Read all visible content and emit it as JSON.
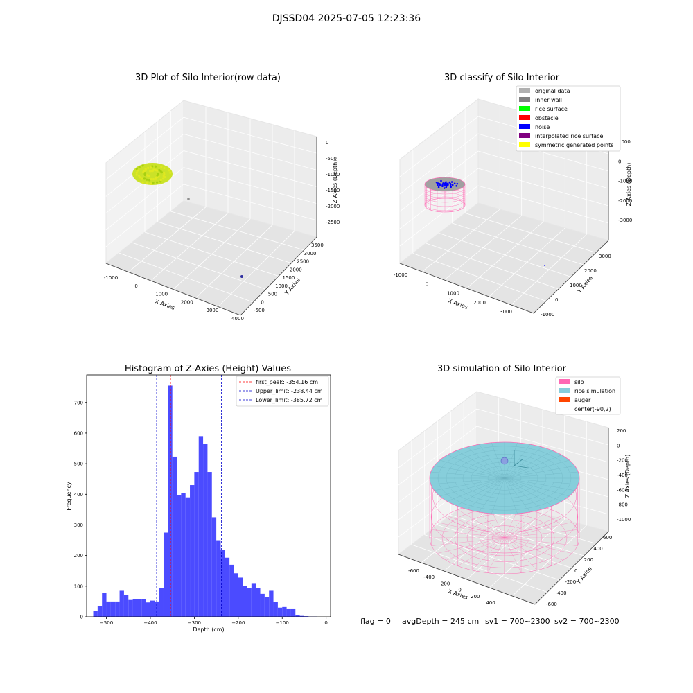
{
  "figure": {
    "suptitle": "DJSSD04 2025-07-05 12:23:36",
    "footer": {
      "flag": "flag = 0",
      "avg_depth": "avgDepth = 245 cm",
      "sv1": "sv1 = 700~2300",
      "sv2": "sv2 = 700~2300"
    }
  },
  "colors": {
    "yellow_green": "#c8e01c",
    "gray": "#909090",
    "blue": "#0000ff",
    "pink": "#ff69b4",
    "skyblue": "#87cedb",
    "red": "#ff0000",
    "navy": "#0000cc",
    "bar": "#4b4bff"
  },
  "chart_data": [
    {
      "type": "scatter3d",
      "title": "3D Plot of Silo Interior(row data)",
      "xlabel": "X Axies",
      "ylabel": "Y Axies",
      "zlabel": "Z Axies (Depth)",
      "x_ticks": [
        "-1000",
        "0",
        "1000",
        "2000",
        "3000",
        "4000"
      ],
      "y_ticks": [
        "-500",
        "0",
        "500",
        "1000",
        "1500",
        "2000",
        "2500",
        "3000",
        "3500"
      ],
      "z_ticks": [
        "0",
        "-500",
        "-1000",
        "-1500",
        "-2000",
        "-2500"
      ],
      "grid": true
    },
    {
      "type": "scatter3d",
      "title": "3D classify of Silo Interior",
      "xlabel": "X Axies",
      "ylabel": "Y Axies",
      "zlabel": "Z Axies (Depth)",
      "x_ticks": [
        "-1000",
        "0",
        "1000",
        "2000",
        "3000"
      ],
      "y_ticks": [
        "-1000",
        "0",
        "1000",
        "2000",
        "3000"
      ],
      "z_ticks": [
        "1000",
        "0",
        "-1000",
        "-2000",
        "-3000"
      ],
      "legend": [
        {
          "label": "original data",
          "color": "#b0b0b0"
        },
        {
          "label": "inner wall",
          "color": "#808080"
        },
        {
          "label": "rice surface",
          "color": "#00ff00"
        },
        {
          "label": "obstacle",
          "color": "#ff0000"
        },
        {
          "label": "noise",
          "color": "#0000ff"
        },
        {
          "label": "interpolated rice surface",
          "color": "#800080"
        },
        {
          "label": "symmetric generated points",
          "color": "#ffff00"
        }
      ],
      "legend_position": "top-right",
      "grid": true
    },
    {
      "type": "bar",
      "title": "Histogram of Z-Axies (Height) Values",
      "xlabel": "Depth (cm)",
      "ylabel": "Frequency",
      "xlim": [
        -545,
        10
      ],
      "ylim": [
        0,
        790
      ],
      "x_ticks": [
        -500,
        -400,
        -300,
        -200,
        -100,
        0
      ],
      "y_ticks": [
        0,
        100,
        200,
        300,
        400,
        500,
        600,
        700
      ],
      "bin_width": 10,
      "bins": [
        {
          "x": -530,
          "v": 20
        },
        {
          "x": -520,
          "v": 35
        },
        {
          "x": -510,
          "v": 77
        },
        {
          "x": -500,
          "v": 50
        },
        {
          "x": -490,
          "v": 50
        },
        {
          "x": -480,
          "v": 50
        },
        {
          "x": -470,
          "v": 85
        },
        {
          "x": -460,
          "v": 72
        },
        {
          "x": -450,
          "v": 55
        },
        {
          "x": -440,
          "v": 57
        },
        {
          "x": -430,
          "v": 58
        },
        {
          "x": -420,
          "v": 57
        },
        {
          "x": -410,
          "v": 47
        },
        {
          "x": -400,
          "v": 53
        },
        {
          "x": -390,
          "v": 50
        },
        {
          "x": -380,
          "v": 95
        },
        {
          "x": -370,
          "v": 275
        },
        {
          "x": -360,
          "v": 755
        },
        {
          "x": -350,
          "v": 523
        },
        {
          "x": -340,
          "v": 398
        },
        {
          "x": -330,
          "v": 403
        },
        {
          "x": -320,
          "v": 390
        },
        {
          "x": -310,
          "v": 430
        },
        {
          "x": -300,
          "v": 473
        },
        {
          "x": -290,
          "v": 590
        },
        {
          "x": -280,
          "v": 565
        },
        {
          "x": -270,
          "v": 473
        },
        {
          "x": -260,
          "v": 325
        },
        {
          "x": -250,
          "v": 250
        },
        {
          "x": -240,
          "v": 218
        },
        {
          "x": -230,
          "v": 193
        },
        {
          "x": -220,
          "v": 170
        },
        {
          "x": -210,
          "v": 142
        },
        {
          "x": -200,
          "v": 128
        },
        {
          "x": -190,
          "v": 100
        },
        {
          "x": -180,
          "v": 95
        },
        {
          "x": -170,
          "v": 110
        },
        {
          "x": -160,
          "v": 95
        },
        {
          "x": -150,
          "v": 75
        },
        {
          "x": -140,
          "v": 65
        },
        {
          "x": -130,
          "v": 85
        },
        {
          "x": -120,
          "v": 48
        },
        {
          "x": -110,
          "v": 30
        },
        {
          "x": -100,
          "v": 32
        },
        {
          "x": -90,
          "v": 25
        },
        {
          "x": -80,
          "v": 25
        },
        {
          "x": -70,
          "v": 5
        },
        {
          "x": -60,
          "v": 3
        },
        {
          "x": -50,
          "v": 2
        },
        {
          "x": -40,
          "v": 1
        },
        {
          "x": -30,
          "v": 1
        }
      ],
      "vlines": [
        {
          "label": "first_peak: -354.16 cm",
          "x": -354.16,
          "color": "#ff0000"
        },
        {
          "label": "Upper_limit: -238.44 cm",
          "x": -238.44,
          "color": "#0000cc"
        },
        {
          "label": "Lower_limit: -385.72 cm",
          "x": -385.72,
          "color": "#0000cc"
        }
      ],
      "legend_position": "top-right"
    },
    {
      "type": "surface3d",
      "title": "3D simulation of Silo Interior",
      "xlabel": "X Axies",
      "ylabel": "Y Axies",
      "zlabel": "Z Axies (Depth)",
      "x_ticks": [
        "-600",
        "-400",
        "-200",
        "0",
        "200",
        "400"
      ],
      "y_ticks": [
        "-600",
        "-400",
        "-200",
        "0",
        "200",
        "400",
        "600"
      ],
      "z_ticks": [
        "200",
        "0",
        "-200",
        "-400",
        "-600",
        "-800",
        "-1000"
      ],
      "legend": [
        {
          "label": "silo",
          "color": "#ff69b4"
        },
        {
          "label": "rice simulation",
          "color": "#87cedb"
        },
        {
          "label": "auger",
          "color": "#ff4500"
        },
        {
          "label": "center(-90,2)",
          "color": ""
        }
      ],
      "legend_position": "top-right"
    }
  ]
}
